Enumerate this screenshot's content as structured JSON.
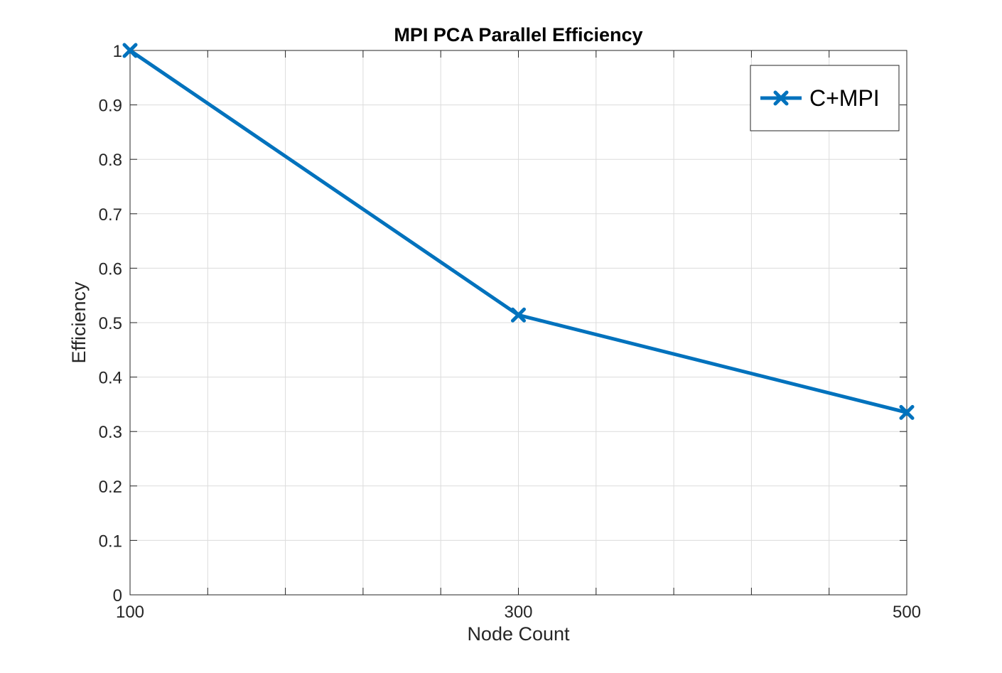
{
  "chart_data": {
    "type": "line",
    "title": "MPI PCA Parallel Efficiency",
    "xlabel": "Node Count",
    "ylabel": "Efficiency",
    "xlim": [
      100,
      500
    ],
    "ylim": [
      0,
      1
    ],
    "xticks": [
      100,
      300,
      500
    ],
    "xtick_labels": [
      "100",
      "300",
      "500"
    ],
    "x_minor_grid": [
      140,
      180,
      220,
      260,
      340,
      380,
      420,
      460
    ],
    "yticks": [
      0,
      0.1,
      0.2,
      0.3,
      0.4,
      0.5,
      0.6,
      0.7,
      0.8,
      0.9,
      1
    ],
    "ytick_labels": [
      "0",
      "0.1",
      "0.2",
      "0.3",
      "0.4",
      "0.5",
      "0.6",
      "0.7",
      "0.8",
      "0.9",
      "1"
    ],
    "grid": true,
    "legend_position": "top-right",
    "series": [
      {
        "name": "C+MPI",
        "marker": "x",
        "color": "#0072BD",
        "x": [
          100,
          300,
          500
        ],
        "y": [
          1.0,
          0.514,
          0.335
        ]
      }
    ]
  }
}
